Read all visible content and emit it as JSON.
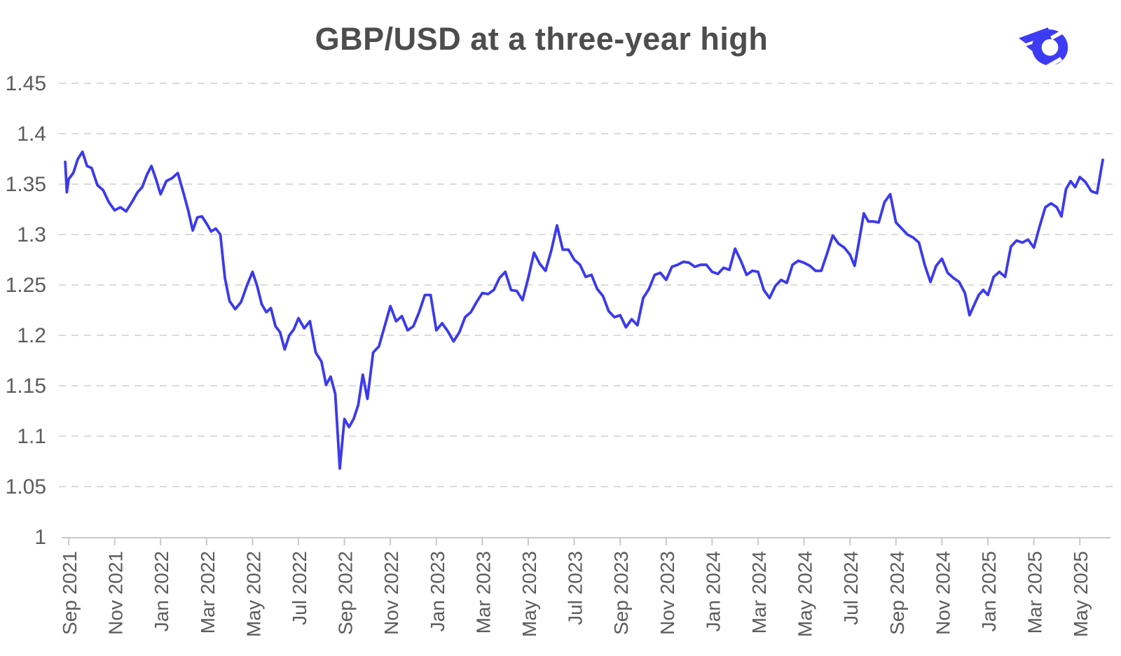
{
  "page": {
    "title": "GBP/USD at a three-year high"
  },
  "branding": {
    "logo_name": "winged-o-brand-mark",
    "logo_color": "#3D3BF3"
  },
  "chart_data": {
    "type": "line",
    "title": "GBP/USD at a three-year high",
    "legend": "none",
    "grid": "horizontal dashed",
    "title_color": "#4D4D4D",
    "line_color": "#3B3AEC",
    "grid_color": "#DBDBDB",
    "axis_color": "#C9C9C9",
    "label_color": "#5C5C5C",
    "y_axis": {
      "min": 1.0,
      "max": 1.45,
      "tick_labels": [
        "1.45",
        "1.4",
        "1.35",
        "1.3",
        "1.25",
        "1.2",
        "1.15",
        "1.1",
        "1.05",
        "1"
      ],
      "tick_values": [
        1.45,
        1.4,
        1.35,
        1.3,
        1.25,
        1.2,
        1.15,
        1.1,
        1.05,
        1.0
      ]
    },
    "x_axis": {
      "tick_labels": [
        "Sep 2021",
        "Nov 2021",
        "Jan 2022",
        "Mar 2022",
        "May 2022",
        "Jul 2022",
        "Sep 2022",
        "Nov 2022",
        "Jan 2023",
        "Mar 2023",
        "May 2023",
        "Jul 2023",
        "Sep 2023",
        "Nov 2023",
        "Jan 2024",
        "Mar 2024",
        "May 2024",
        "Jul 2024",
        "Sep 2024",
        "Nov 2024",
        "Jan 2025",
        "Mar 2025",
        "May 2025"
      ],
      "tick_month_offsets": [
        0,
        2,
        4,
        6,
        8,
        10,
        12,
        14,
        16,
        18,
        20,
        22,
        24,
        26,
        28,
        30,
        32,
        34,
        36,
        38,
        40,
        42,
        44
      ]
    },
    "series": [
      {
        "name": "GBP/USD",
        "sampling": "approx. weekly closes, grouped by calendar month",
        "lead_in_points": [
          [
            -0.15,
            1.372
          ],
          [
            -0.08,
            1.342
          ]
        ],
        "months_start": "Oct 2021",
        "values_by_month": [
          [
            1.355,
            1.361,
            1.375,
            1.382,
            1.368
          ],
          [
            1.366,
            1.349,
            1.344,
            1.332
          ],
          [
            1.324,
            1.327,
            1.323,
            1.332
          ],
          [
            1.342,
            1.347,
            1.359,
            1.368,
            1.355
          ],
          [
            1.34,
            1.353,
            1.356,
            1.361
          ],
          [
            1.341,
            1.324,
            1.304,
            1.317,
            1.318
          ],
          [
            1.311,
            1.303,
            1.306,
            1.3,
            1.257
          ],
          [
            1.234,
            1.226,
            1.233,
            1.249
          ],
          [
            1.263,
            1.249,
            1.231,
            1.223,
            1.227
          ],
          [
            1.209,
            1.203,
            1.186,
            1.2,
            1.206
          ],
          [
            1.217,
            1.207,
            1.214,
            1.183
          ],
          [
            1.174,
            1.151,
            1.159,
            1.142,
            1.068
          ],
          [
            1.117,
            1.109,
            1.117,
            1.131,
            1.161
          ],
          [
            1.137,
            1.183,
            1.189,
            1.209
          ],
          [
            1.229,
            1.214,
            1.219,
            1.205
          ],
          [
            1.209,
            1.223,
            1.24,
            1.24
          ],
          [
            1.205,
            1.212,
            1.204,
            1.194
          ],
          [
            1.203,
            1.218,
            1.223,
            1.233
          ],
          [
            1.242,
            1.241,
            1.245,
            1.257
          ],
          [
            1.263,
            1.245,
            1.244,
            1.235
          ],
          [
            1.257,
            1.282,
            1.271,
            1.264
          ],
          [
            1.284,
            1.309,
            1.285,
            1.285
          ],
          [
            1.275,
            1.27,
            1.258,
            1.26
          ],
          [
            1.246,
            1.239,
            1.224,
            1.218
          ],
          [
            1.22,
            1.208,
            1.216,
            1.21
          ],
          [
            1.237,
            1.246,
            1.26,
            1.262
          ],
          [
            1.255,
            1.268,
            1.27,
            1.273
          ],
          [
            1.272,
            1.268,
            1.27,
            1.27
          ],
          [
            1.263,
            1.261,
            1.267,
            1.265
          ],
          [
            1.286,
            1.274,
            1.26,
            1.264
          ],
          [
            1.263,
            1.245,
            1.237,
            1.249
          ],
          [
            1.255,
            1.252,
            1.27,
            1.274
          ],
          [
            1.272,
            1.269,
            1.264,
            1.264
          ],
          [
            1.281,
            1.299,
            1.291,
            1.287
          ],
          [
            1.28,
            1.269,
            1.294,
            1.321,
            1.313
          ],
          [
            1.313,
            1.312,
            1.332,
            1.34
          ],
          [
            1.312,
            1.306,
            1.3,
            1.297
          ],
          [
            1.292,
            1.27,
            1.253,
            1.269
          ],
          [
            1.276,
            1.262,
            1.257,
            1.253
          ],
          [
            1.242,
            1.22,
            1.23,
            1.24,
            1.245
          ],
          [
            1.24,
            1.258,
            1.263,
            1.258
          ],
          [
            1.288,
            1.294,
            1.292,
            1.295
          ],
          [
            1.287,
            1.308,
            1.327,
            1.331
          ],
          [
            1.327,
            1.318,
            1.345,
            1.353,
            1.347
          ],
          [
            1.357,
            1.352,
            1.343,
            1.341
          ],
          [
            1.374
          ]
        ]
      }
    ]
  }
}
